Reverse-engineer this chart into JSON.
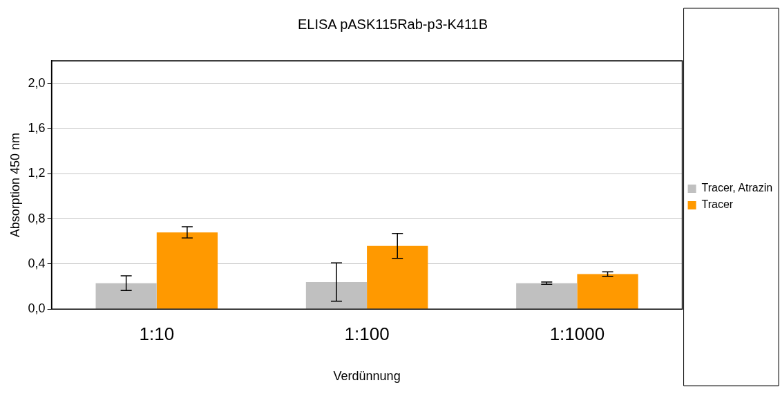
{
  "chart_data": {
    "type": "bar",
    "title": "ELISA pASK115Rab-p3-K411B",
    "xlabel": "Verdünnung",
    "ylabel": "Absorption 450 nm",
    "categories": [
      "1:10",
      "1:100",
      "1:1000"
    ],
    "series": [
      {
        "name": "Tracer, Atrazin",
        "color": "#c0c0c0",
        "values": [
          0.23,
          0.24,
          0.23
        ],
        "errors": [
          0.065,
          0.17,
          0.01
        ]
      },
      {
        "name": "Tracer",
        "color": "#ff9900",
        "values": [
          0.68,
          0.56,
          0.31
        ],
        "errors": [
          0.05,
          0.11,
          0.02
        ]
      }
    ],
    "ylim": [
      0,
      2.2
    ],
    "yticks": [
      {
        "value": 0,
        "label": "0,0"
      },
      {
        "value": 0.4,
        "label": "0,4"
      },
      {
        "value": 0.8,
        "label": "0,8"
      },
      {
        "value": 1.2,
        "label": "1,2"
      },
      {
        "value": 1.6,
        "label": "1,6"
      },
      {
        "value": 2.0,
        "label": "2,0"
      }
    ],
    "grid": "y",
    "legend": "right"
  }
}
